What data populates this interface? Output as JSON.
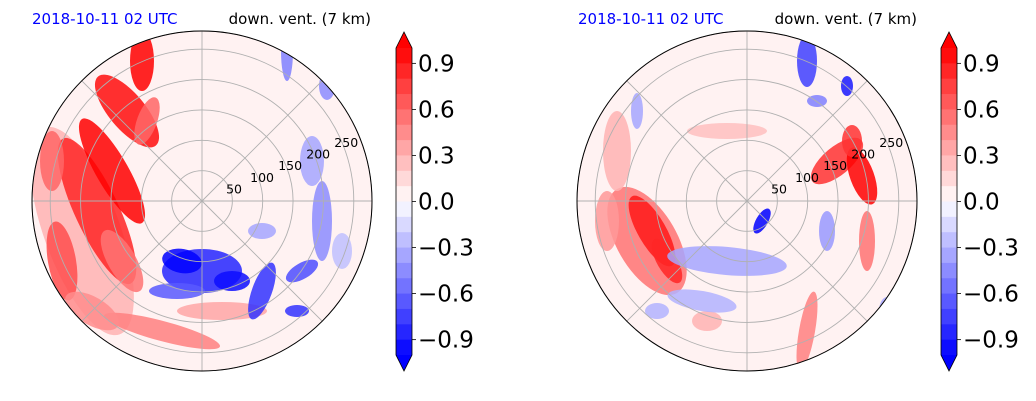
{
  "panels": [
    {
      "id": "left",
      "title_left": "2018-10-11 02 UTC",
      "title_right": "down. vent. (7 km)"
    },
    {
      "id": "right",
      "title_left": "2018-10-11 02 UTC",
      "title_right": "down. vent. (7 km)"
    }
  ],
  "chart_data": [
    {
      "type": "heatmap",
      "projection": "polar",
      "title_left": "2018-10-11 02 UTC",
      "title_right": "down. vent. (7 km)",
      "radial_ticks": [
        "50",
        "100",
        "150",
        "200",
        "250"
      ],
      "radial_tick_values": [
        50,
        100,
        150,
        200,
        250
      ],
      "rlim": [
        0,
        280
      ],
      "grid": true,
      "colormap": "bwr",
      "colorbar": {
        "range": [
          -1.0,
          1.0
        ],
        "extend": "both",
        "ticks": [
          0.9,
          0.6,
          0.3,
          0.0,
          -0.3,
          -0.6,
          -0.9
        ],
        "tick_labels": [
          "0.9",
          "0.6",
          "0.3",
          "0.0",
          "−0.3",
          "−0.6",
          "−0.9"
        ]
      }
    },
    {
      "type": "heatmap",
      "projection": "polar",
      "title_left": "2018-10-11 02 UTC",
      "title_right": "down. vent. (7 km)",
      "radial_ticks": [
        "50",
        "100",
        "150",
        "200",
        "250"
      ],
      "radial_tick_values": [
        50,
        100,
        150,
        200,
        250
      ],
      "rlim": [
        0,
        280
      ],
      "grid": true,
      "colormap": "bwr",
      "colorbar": {
        "range": [
          -1.0,
          1.0
        ],
        "extend": "both",
        "ticks": [
          0.9,
          0.6,
          0.3,
          0.0,
          -0.3,
          -0.6,
          -0.9
        ],
        "tick_labels": [
          "0.9",
          "0.6",
          "0.3",
          "0.0",
          "−0.3",
          "−0.6",
          "−0.9"
        ]
      }
    }
  ],
  "colors": {
    "title_left": "#0000ff",
    "positive_max": "#ff0000",
    "negative_max": "#0000ff",
    "neutral": "#ffffff",
    "grid": "#b0b0b0"
  }
}
